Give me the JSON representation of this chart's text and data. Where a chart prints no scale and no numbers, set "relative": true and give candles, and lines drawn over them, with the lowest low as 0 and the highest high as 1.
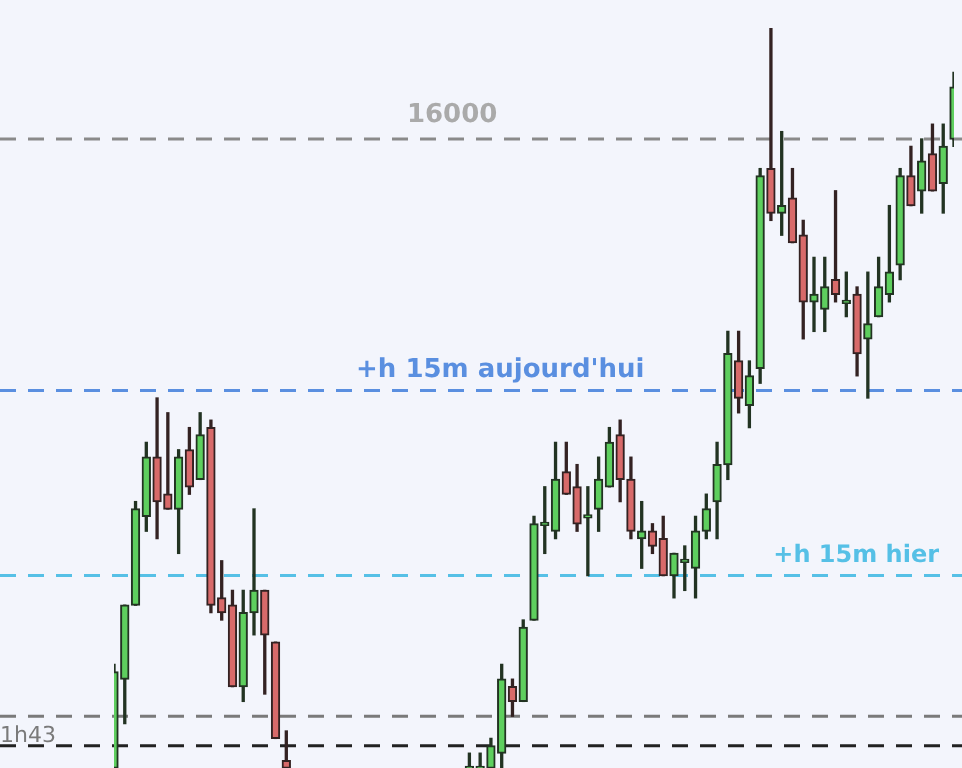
{
  "chart_data": {
    "type": "candlestick",
    "relative": true,
    "legend": false,
    "tick_labels": false,
    "annotations": [
      "16000"
    ],
    "categories": [
      null,
      null,
      null,
      null,
      null,
      null,
      null,
      null,
      null,
      null,
      null,
      null,
      null,
      null,
      null,
      null,
      null,
      null,
      null,
      null,
      null,
      null,
      null,
      null,
      null,
      null,
      null,
      null,
      null,
      null,
      null,
      null,
      null,
      null,
      null,
      null,
      null,
      null,
      null,
      null,
      null,
      null,
      null,
      null,
      null,
      null,
      null,
      null,
      null,
      null,
      null,
      null,
      null,
      null,
      null,
      null,
      null,
      null,
      null,
      null,
      null,
      null,
      null,
      null,
      null,
      null,
      null,
      null,
      null,
      null,
      null,
      null,
      null,
      null,
      null,
      null,
      null,
      null,
      null
    ],
    "ohlc": [
      [
        0,
        0.14,
        0,
        0.13
      ],
      [
        0.12,
        0.22,
        0.06,
        0.22
      ],
      [
        0.22,
        0.36,
        0.22,
        0.35
      ],
      [
        0.34,
        0.44,
        0.32,
        0.42
      ],
      [
        0.42,
        0.5,
        0.31,
        0.36
      ],
      [
        0.37,
        0.48,
        0.35,
        0.35
      ],
      [
        0.35,
        0.43,
        0.29,
        0.42
      ],
      [
        0.43,
        0.46,
        0.37,
        0.38
      ],
      [
        0.39,
        0.48,
        0.39,
        0.45
      ],
      [
        0.46,
        0.47,
        0.21,
        0.22
      ],
      [
        0.23,
        0.28,
        0.2,
        0.21
      ],
      [
        0.22,
        0.24,
        0.11,
        0.11
      ],
      [
        0.11,
        0.24,
        0.09,
        0.21
      ],
      [
        0.21,
        0.35,
        0.18,
        0.24
      ],
      [
        0.24,
        0.24,
        0.1,
        0.18
      ],
      [
        0.17,
        0.17,
        0.04,
        0.04
      ],
      [
        0.01,
        0.05,
        0,
        0
      ],
      null,
      null,
      null,
      null,
      null,
      null,
      null,
      null,
      null,
      null,
      null,
      null,
      null,
      null,
      null,
      null,
      [
        0,
        0.02,
        0,
        0
      ],
      [
        0,
        0.02,
        0,
        0
      ],
      [
        0,
        0.04,
        0,
        0.03
      ],
      [
        0.02,
        0.14,
        0,
        0.12
      ],
      [
        0.11,
        0.12,
        0.07,
        0.09
      ],
      [
        0.09,
        0.2,
        0.09,
        0.19
      ],
      [
        0.2,
        0.34,
        0.2,
        0.33
      ],
      [
        0.33,
        0.38,
        0.29,
        0.33
      ],
      [
        0.32,
        0.44,
        0.31,
        0.39
      ],
      [
        0.4,
        0.44,
        0.37,
        0.37
      ],
      [
        0.38,
        0.41,
        0.32,
        0.33
      ],
      [
        0.34,
        0.38,
        0.26,
        0.34
      ],
      [
        0.35,
        0.42,
        0.32,
        0.39
      ],
      [
        0.38,
        0.46,
        0.38,
        0.44
      ],
      [
        0.45,
        0.47,
        0.36,
        0.39
      ],
      [
        0.39,
        0.42,
        0.31,
        0.32
      ],
      [
        0.31,
        0.36,
        0.27,
        0.32
      ],
      [
        0.32,
        0.33,
        0.29,
        0.3
      ],
      [
        0.31,
        0.34,
        0.26,
        0.26
      ],
      [
        0.26,
        0.29,
        0.23,
        0.29
      ],
      [
        0.28,
        0.3,
        0.24,
        0.28
      ],
      [
        0.27,
        0.34,
        0.23,
        0.32
      ],
      [
        0.32,
        0.37,
        0.31,
        0.35
      ],
      [
        0.36,
        0.44,
        0.31,
        0.41
      ],
      [
        0.41,
        0.59,
        0.39,
        0.56
      ],
      [
        0.55,
        0.59,
        0.48,
        0.5
      ],
      [
        0.49,
        0.55,
        0.46,
        0.53
      ],
      [
        0.54,
        0.81,
        0.52,
        0.8
      ],
      [
        0.81,
        1,
        0.74,
        0.75
      ],
      [
        0.75,
        0.86,
        0.72,
        0.76
      ],
      [
        0.77,
        0.81,
        0.71,
        0.71
      ],
      [
        0.72,
        0.74,
        0.58,
        0.63
      ],
      [
        0.63,
        0.69,
        0.59,
        0.64
      ],
      [
        0.62,
        0.69,
        0.59,
        0.65
      ],
      [
        0.66,
        0.78,
        0.63,
        0.64
      ],
      [
        0.63,
        0.67,
        0.61,
        0.63
      ],
      [
        0.64,
        0.65,
        0.53,
        0.56
      ],
      [
        0.58,
        0.67,
        0.5,
        0.6
      ],
      [
        0.61,
        0.69,
        0.61,
        0.65
      ],
      [
        0.64,
        0.76,
        0.63,
        0.67
      ],
      [
        0.68,
        0.81,
        0.66,
        0.8
      ],
      [
        0.8,
        0.84,
        0.76,
        0.76
      ],
      [
        0.78,
        0.85,
        0.75,
        0.82
      ],
      [
        0.83,
        0.87,
        0.78,
        0.78
      ],
      [
        0.79,
        0.87,
        0.75,
        0.84
      ],
      [
        0.85,
        0.94,
        0.84,
        0.92
      ]
    ],
    "ref_lines": [
      {
        "axis": "y",
        "value": 0.85,
        "color": "#8a8a8a",
        "line_style": "dashed"
      },
      {
        "axis": "y",
        "value": 0.51,
        "label": "+h 15m aujourd'hui",
        "color": "#5a8fe0",
        "line_style": "dashed"
      },
      {
        "axis": "y",
        "value": 0.26,
        "label": "+h 15m hier",
        "color": "#56c0e6",
        "line_style": "dashed"
      },
      {
        "axis": "y",
        "value": 0.07,
        "label": "1h43",
        "color": "#7a7a7a",
        "line_style": "dashed"
      },
      {
        "axis": "y",
        "value": 0.03,
        "color": "#222222",
        "line_style": "dashed"
      }
    ]
  }
}
